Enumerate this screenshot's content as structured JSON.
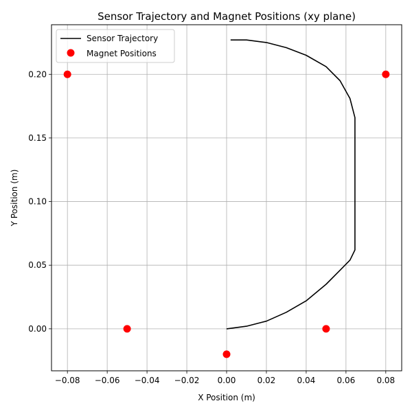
{
  "chart_data": {
    "type": "scatter",
    "title": "Sensor Trajectory and Magnet Positions (xy plane)",
    "xlabel": "X Position (m)",
    "ylabel": "Y Position (m)",
    "xlim": [
      -0.088,
      0.088
    ],
    "ylim": [
      -0.033,
      0.239
    ],
    "x_ticks": [
      -0.08,
      -0.06,
      -0.04,
      -0.02,
      0.0,
      0.02,
      0.04,
      0.06,
      0.08
    ],
    "x_tick_labels": [
      "−0.08",
      "−0.06",
      "−0.04",
      "−0.02",
      "0.00",
      "0.02",
      "0.04",
      "0.06",
      "0.08"
    ],
    "y_ticks": [
      0.0,
      0.05,
      0.1,
      0.15,
      0.2
    ],
    "y_tick_labels": [
      "0.00",
      "0.05",
      "0.10",
      "0.15",
      "0.20"
    ],
    "grid": true,
    "legend_position": "top-left",
    "series": [
      {
        "name": "Sensor Trajectory",
        "kind": "line",
        "color": "#000000",
        "x": [
          0.0,
          0.01,
          0.02,
          0.03,
          0.04,
          0.05,
          0.057,
          0.062,
          0.0645,
          0.0645,
          0.0645,
          0.0645,
          0.062,
          0.057,
          0.05,
          0.04,
          0.03,
          0.02,
          0.01,
          0.002
        ],
        "y": [
          0.0,
          0.002,
          0.006,
          0.013,
          0.022,
          0.035,
          0.046,
          0.054,
          0.062,
          0.1,
          0.14,
          0.166,
          0.181,
          0.195,
          0.206,
          0.215,
          0.221,
          0.225,
          0.227,
          0.227
        ]
      },
      {
        "name": "Magnet Positions",
        "kind": "scatter",
        "color": "#ff0000",
        "x": [
          -0.08,
          -0.05,
          0.0,
          0.05,
          0.08
        ],
        "y": [
          0.2,
          0.0,
          -0.02,
          0.0,
          0.2
        ]
      }
    ]
  }
}
